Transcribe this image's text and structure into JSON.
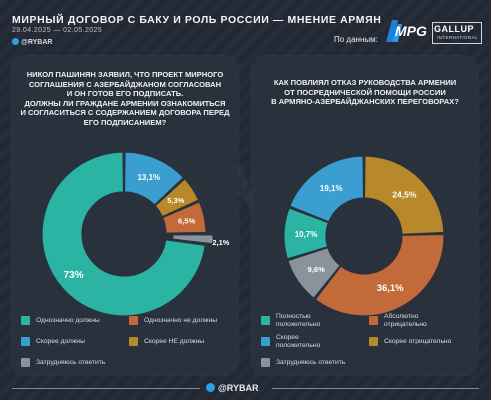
{
  "header": {
    "title": "МИРНЫЙ ДОГОВОР С БАКУ И РОЛЬ РОССИИ — МНЕНИЕ АРМЯН",
    "dates": "29.04.2025 — 02.05.2025",
    "brand": "@RYBAR",
    "source_label": "По данным:",
    "logo_mpg": "MPG",
    "logo_gallup": "GALLUP",
    "logo_gallup_sub": "INTERNATIONAL"
  },
  "watermark": "@RYBAR",
  "footer": {
    "brand": "@RYBAR"
  },
  "colors": {
    "teal": "#2bb3a4",
    "blue": "#3a9fd0",
    "brown": "#c26a3a",
    "ochre": "#b8892a",
    "grey": "#8a929b"
  },
  "chart_data": [
    {
      "type": "pie",
      "title": "НИКОЛ ПАШИНЯН ЗАЯВИЛ, ЧТО ПРОЕКТ МИРНОГО СОГЛАШЕНИЯ С АЗЕРБАЙДЖАНОМ СОГЛАСОВАН И ОН ГОТОВ ЕГО ПОДПИСАТЬ. ДОЛЖНЫ ЛИ ГРАЖДАНЕ АРМЕНИИ ОЗНАКОМИТЬСЯ И СОГЛАСИТЬСЯ С СОДЕРЖАНИЕМ ДОГОВОРА ПЕРЕД ЕГО ПОДПИСАНИЕМ?",
      "title_lines": [
        "НИКОЛ ПАШИНЯН ЗАЯВИЛ, ЧТО ПРОЕКТ МИРНОГО",
        "СОГЛАШЕНИЯ С АЗЕРБАЙДЖАНОМ СОГЛАСОВАН",
        "И ОН ГОТОВ ЕГО ПОДПИСАТЬ.",
        "ДОЛЖНЫ ЛИ ГРАЖДАНЕ АРМЕНИИ ОЗНАКОМИТЬСЯ",
        "И СОГЛАСИТЬСЯ С СОДЕРЖАНИЕМ ДОГОВОРА ПЕРЕД",
        "ЕГО ПОДПИСАНИЕМ?"
      ],
      "slices": [
        {
          "label": "Скорее должны",
          "value": 13.1,
          "display": "13,1%",
          "color": "#3a9fd0"
        },
        {
          "label": "Скорее НЕ должны",
          "value": 5.3,
          "display": "5,3%",
          "color": "#b8892a"
        },
        {
          "label": "Однозначно не должны",
          "value": 6.5,
          "display": "6,5%",
          "color": "#c26a3a"
        },
        {
          "label": "Затрудняюсь ответить",
          "value": 2.1,
          "display": "2,1%",
          "color": "#8a929b"
        },
        {
          "label": "Однозначно должны",
          "value": 73,
          "display": "73%",
          "color": "#2bb3a4"
        }
      ],
      "legend": [
        {
          "label": "Однозначно должны",
          "color": "#2bb3a4"
        },
        {
          "label": "Однозначно не должны",
          "color": "#c26a3a"
        },
        {
          "label": "Скорее должны",
          "color": "#3a9fd0"
        },
        {
          "label": "Скорее НЕ должны",
          "color": "#b8892a"
        },
        {
          "label": "Затрудняюсь ответить",
          "color": "#8a929b"
        }
      ]
    },
    {
      "type": "pie",
      "title": "КАК ПОВЛИЯЛ ОТКАЗ РУКОВОДСТВА АРМЕНИИ ОТ ПОСРЕДНИЧЕСКОЙ ПОМОЩИ РОССИИ В АРМЯНО-АЗЕРБАЙДЖАНСКИХ ПЕРЕГОВОРАХ?",
      "title_lines": [
        "КАК ПОВЛИЯЛ ОТКАЗ РУКОВОДСТВА АРМЕНИИ",
        "ОТ ПОСРЕДНИЧЕСКОЙ ПОМОЩИ РОССИИ",
        "В АРМЯНО-АЗЕРБАЙДЖАНСКИХ ПЕРЕГОВОРАХ?"
      ],
      "slices": [
        {
          "label": "Скорее отрицательно",
          "value": 24.5,
          "display": "24,5%",
          "color": "#b8892a"
        },
        {
          "label": "Абсолютно отрицательно",
          "value": 36.1,
          "display": "36,1%",
          "color": "#c26a3a"
        },
        {
          "label": "Затрудняюсь ответить",
          "value": 9.6,
          "display": "9,6%",
          "color": "#8a929b"
        },
        {
          "label": "Полностью положительно",
          "value": 10.7,
          "display": "10,7%",
          "color": "#2bb3a4"
        },
        {
          "label": "Скорее положительно",
          "value": 19.1,
          "display": "19,1%",
          "color": "#3a9fd0"
        }
      ],
      "legend": [
        {
          "label": "Полностью\nположительно",
          "color": "#2bb3a4"
        },
        {
          "label": "Абсолютно\nотрицательно",
          "color": "#c26a3a"
        },
        {
          "label": "Скорее\nположительно",
          "color": "#3a9fd0"
        },
        {
          "label": "Скорее отрицательно",
          "color": "#b8892a"
        },
        {
          "label": "Затрудняюсь ответить",
          "color": "#8a929b"
        }
      ]
    }
  ]
}
